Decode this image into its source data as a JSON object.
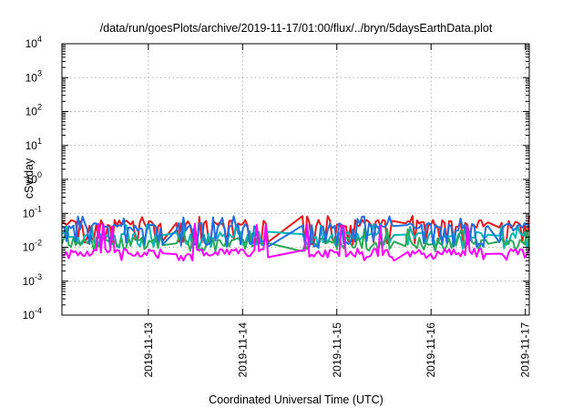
{
  "chart_data": {
    "type": "line",
    "title": "/data/run/goesPlots/archive/2019-11-17/01:00/flux/../bryn/5daysEarthData.plot",
    "xlabel": "Coordinated Universal Time (UTC)",
    "ylabel": "cSv/day",
    "yscale": "log",
    "ylim": [
      0.0001,
      10000
    ],
    "xlim": [
      "2019-11-12T02:00",
      "2019-11-17T01:00"
    ],
    "grid": true,
    "legend": "none",
    "y_ticks": [
      {
        "base": "10",
        "exp": "-4",
        "value": 0.0001
      },
      {
        "base": "10",
        "exp": "-3",
        "value": 0.001
      },
      {
        "base": "10",
        "exp": "-2",
        "value": 0.01
      },
      {
        "base": "10",
        "exp": "-1",
        "value": 0.1
      },
      {
        "base": "10",
        "exp": "0",
        "value": 1
      },
      {
        "base": "10",
        "exp": "1",
        "value": 10
      },
      {
        "base": "10",
        "exp": "2",
        "value": 100
      },
      {
        "base": "10",
        "exp": "3",
        "value": 1000
      },
      {
        "base": "10",
        "exp": "4",
        "value": 10000
      }
    ],
    "x_ticks": [
      {
        "label": "2019-11-13",
        "value": "2019-11-13T00:00"
      },
      {
        "label": "2019-11-14",
        "value": "2019-11-14T00:00"
      },
      {
        "label": "2019-11-15",
        "value": "2019-11-15T00:00"
      },
      {
        "label": "2019-11-16",
        "value": "2019-11-16T00:00"
      },
      {
        "label": "2019-11-17",
        "value": "2019-11-17T00:00"
      }
    ],
    "gaps": [
      {
        "start": "2019-11-13T04:00",
        "end": "2019-11-13T07:00"
      },
      {
        "start": "2019-11-14T07:00",
        "end": "2019-11-14T15:00"
      },
      {
        "start": "2019-11-15T15:00",
        "end": "2019-11-15T17:00"
      },
      {
        "start": "2019-11-16T15:00",
        "end": "2019-11-16T17:00"
      }
    ],
    "series": [
      {
        "color": "#e41a1c",
        "base": 0.05,
        "low": 0.012,
        "high": 0.095
      },
      {
        "color": "#00b6b6",
        "base": 0.022,
        "low": 0.009,
        "high": 0.05
      },
      {
        "color": "#2aaa55",
        "base": 0.015,
        "low": 0.0075,
        "high": 0.035
      },
      {
        "color": "#1f6fe0",
        "base": 0.04,
        "low": 0.01,
        "high": 0.085
      },
      {
        "color": "#ff00ff",
        "base": 0.007,
        "low": 0.004,
        "high": 0.05
      }
    ]
  }
}
